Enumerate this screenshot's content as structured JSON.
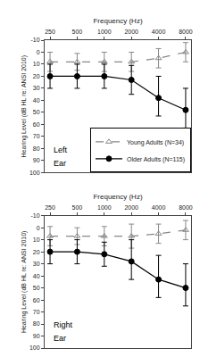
{
  "chart_data": [
    {
      "type": "line",
      "x": [
        250,
        500,
        1000,
        2000,
        4000,
        8000
      ],
      "xlabel": "Frequency (Hz)",
      "ylabel": "Hearing Level (dB HL re: ANSI 2010)",
      "log": "x",
      "xlim": [
        217.74,
        9185.23
      ],
      "xticks": [
        250,
        500,
        1000,
        2000,
        4000,
        8000
      ],
      "ylim": [
        100,
        -10
      ],
      "yticks": [
        -10,
        0,
        10,
        20,
        30,
        40,
        50,
        60,
        70,
        80,
        90,
        100
      ],
      "grid": false,
      "annotations": [
        "Left",
        "Ear"
      ],
      "legend": "lower right",
      "series": [
        {
          "name": "Young Adults (N=34)",
          "color": "#888888",
          "line_style": "dash",
          "marker": "triangle-up-open",
          "values": [
            8,
            8,
            8,
            8,
            5,
            0
          ],
          "error": [
            8,
            7,
            8,
            8,
            8,
            8
          ]
        },
        {
          "name": "Older Adults (N=115)",
          "color": "#000000",
          "line_style": "solid",
          "marker": "circle",
          "values": [
            20,
            20,
            20,
            23,
            38,
            48
          ],
          "error_up": [
            10,
            10,
            10,
            12,
            15,
            15
          ],
          "error_down": [
            10,
            10,
            10,
            12,
            18,
            18
          ]
        }
      ]
    },
    {
      "type": "line",
      "x": [
        250,
        500,
        1000,
        2000,
        4000,
        8000
      ],
      "xlabel": "Frequency (Hz)",
      "ylabel": "Hearing Level (dB HL re: ANSI 2010)",
      "log": "x",
      "xlim": [
        217.74,
        9185.23
      ],
      "xticks": [
        250,
        500,
        1000,
        2000,
        4000,
        8000
      ],
      "ylim": [
        100,
        -10
      ],
      "yticks": [
        -10,
        0,
        10,
        20,
        30,
        40,
        50,
        60,
        70,
        80,
        90,
        100
      ],
      "grid": false,
      "annotations": [
        "Right",
        "Ear"
      ],
      "series": [
        {
          "color": "#888888",
          "line_style": "dash",
          "marker": "triangle-up-open",
          "values": [
            7,
            7,
            7,
            7,
            5,
            2
          ],
          "error": [
            8,
            7,
            8,
            10,
            8,
            8
          ]
        },
        {
          "color": "#000000",
          "line_style": "solid",
          "marker": "circle",
          "values": [
            20,
            20,
            22,
            28,
            43,
            50
          ],
          "error_up": [
            10,
            10,
            10,
            15,
            15,
            15
          ],
          "error_down": [
            10,
            10,
            10,
            18,
            20,
            20
          ]
        }
      ]
    }
  ]
}
